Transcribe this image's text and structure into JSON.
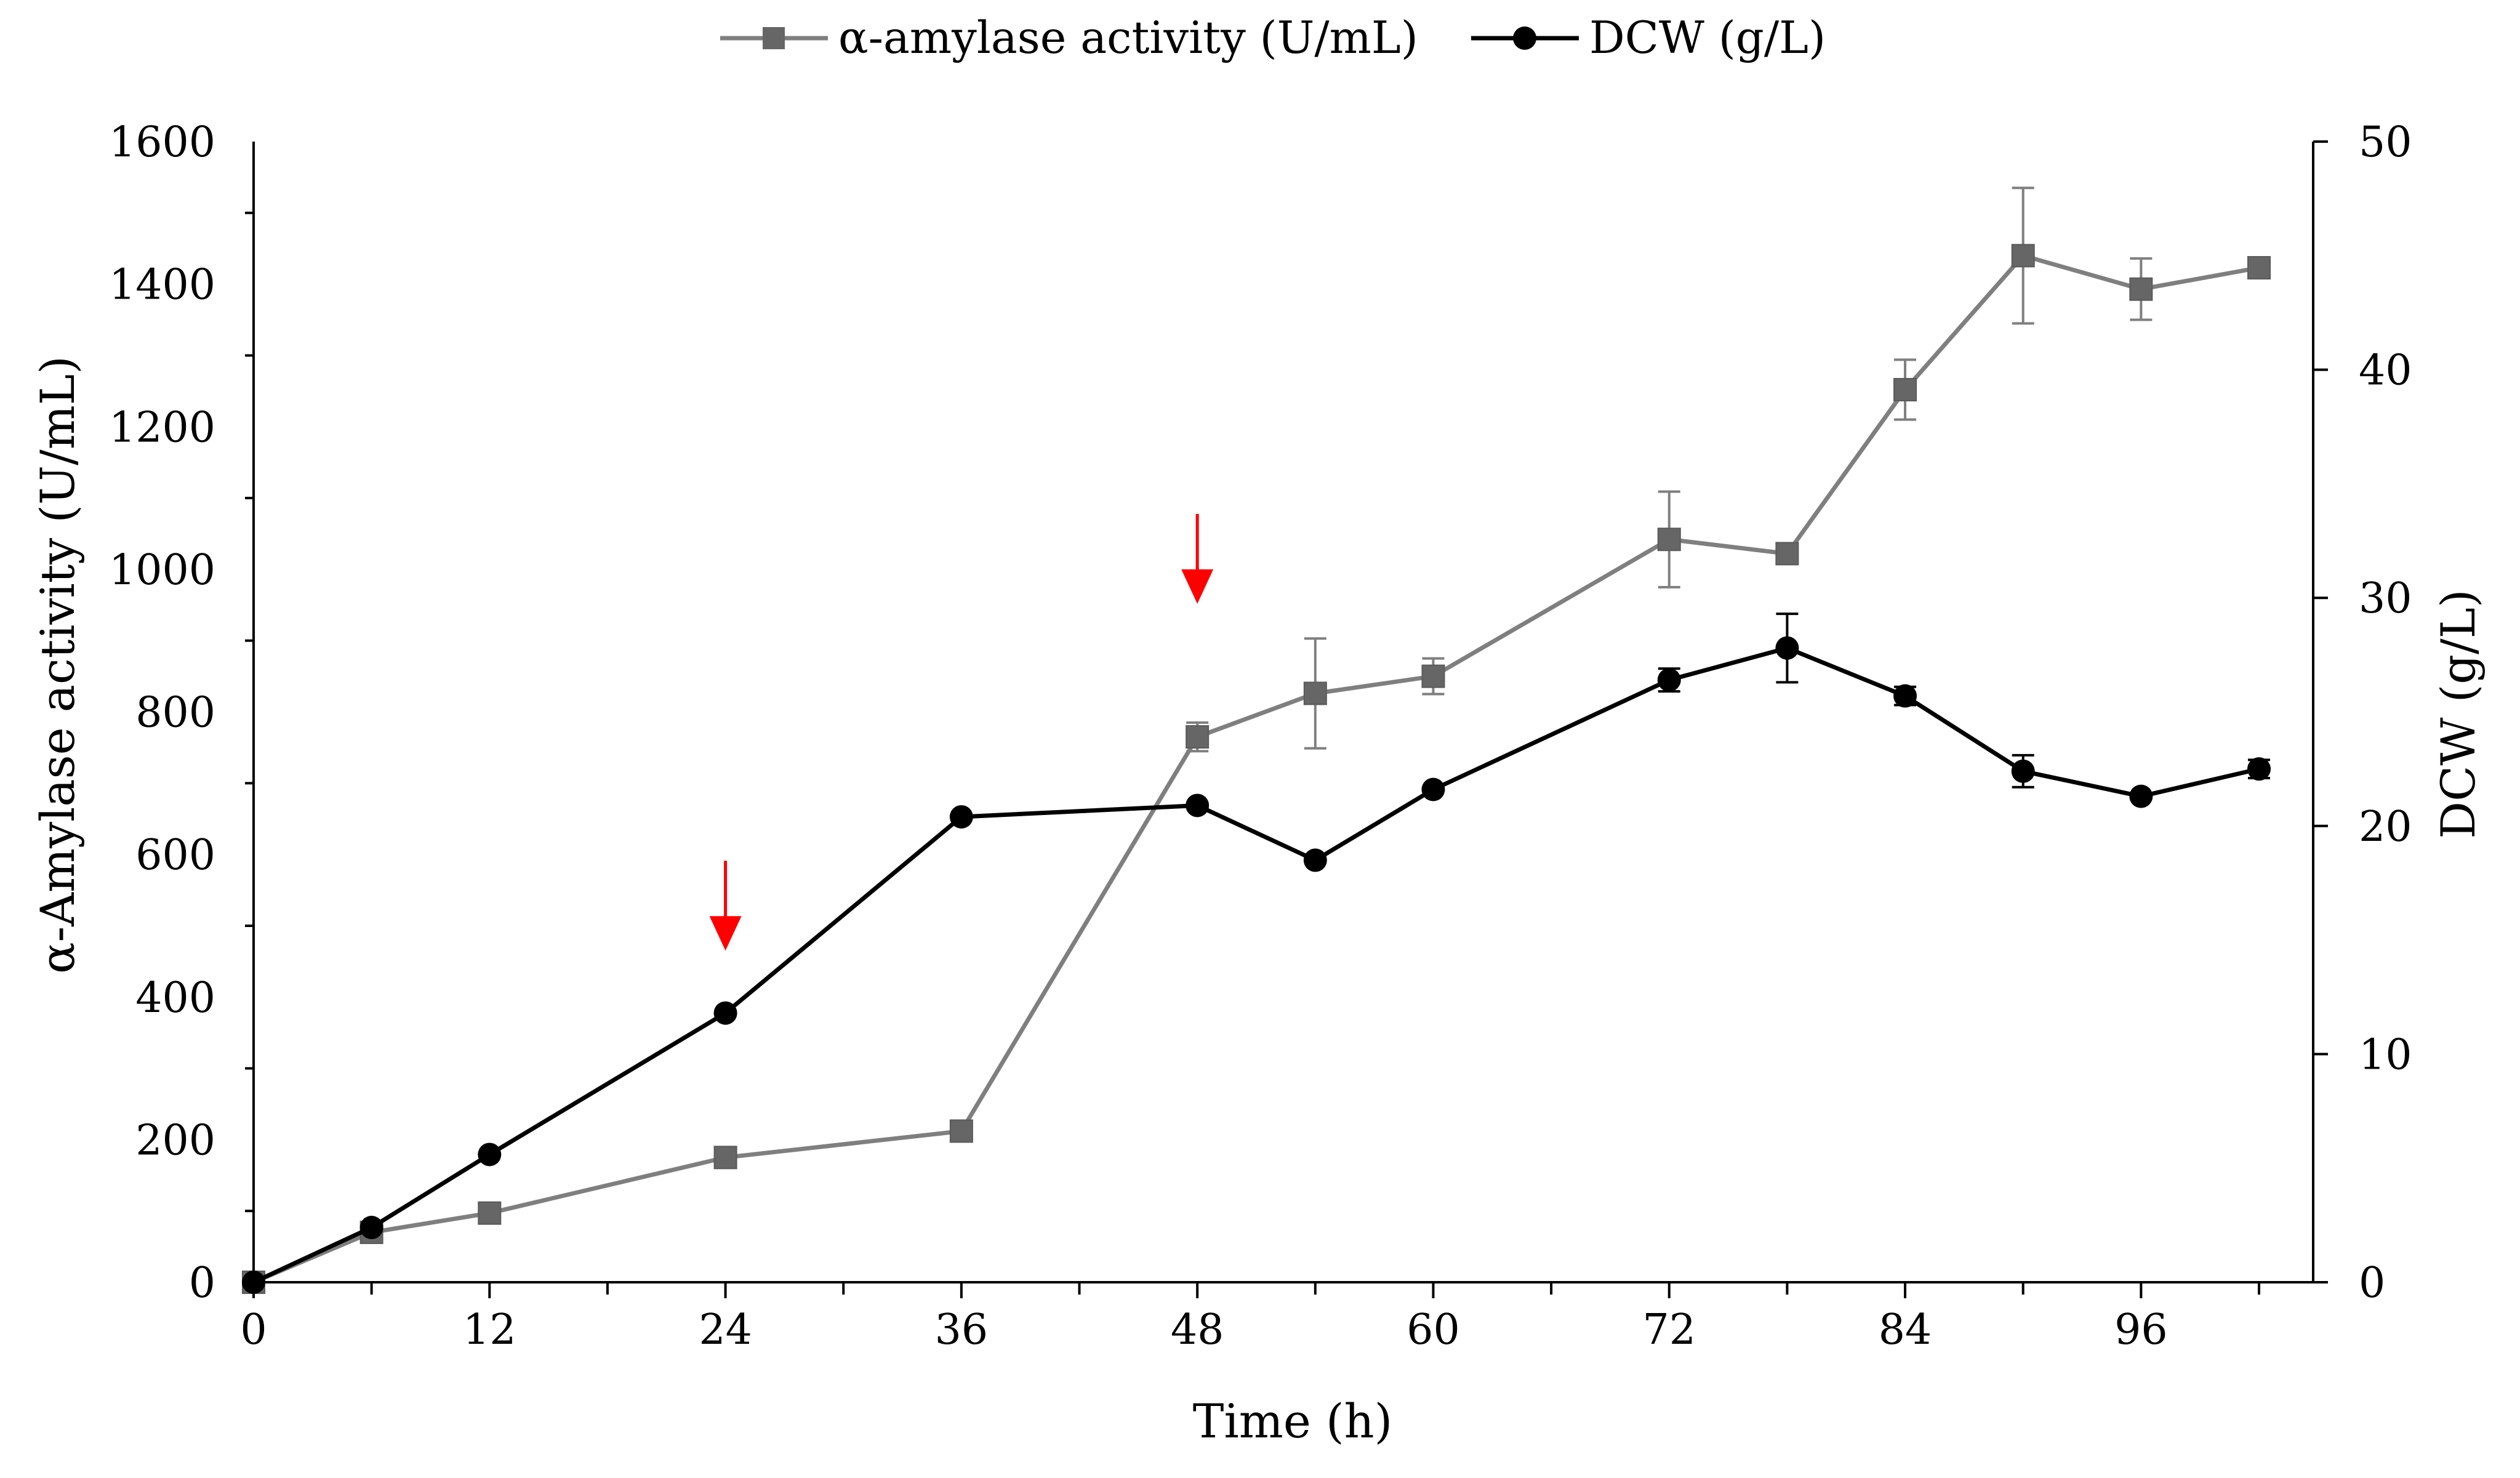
{
  "chart_data": {
    "type": "line",
    "title": "",
    "xlabel": "Time (h)",
    "ylabel_left": "α-Amylase activity (U/mL)",
    "ylabel_right": "DCW (g/L)",
    "xlim": [
      0,
      102
    ],
    "ylim_left": [
      0,
      1600
    ],
    "ylim_right": [
      0,
      50
    ],
    "x_ticks": [
      0,
      12,
      24,
      36,
      48,
      60,
      72,
      84,
      96
    ],
    "x_tick_labels": [
      "0",
      "12",
      "24",
      "36",
      "48",
      "60",
      "72",
      "84",
      "96"
    ],
    "y_left_ticks": [
      0,
      200,
      400,
      600,
      800,
      1000,
      1200,
      1400,
      1600
    ],
    "y_left_tick_labels": [
      "0",
      "200",
      "400",
      "600",
      "800",
      "1000",
      "1200",
      "1400",
      "1600"
    ],
    "y_right_ticks": [
      0,
      10,
      20,
      30,
      40,
      50
    ],
    "y_right_tick_labels": [
      "0",
      "10",
      "20",
      "30",
      "40",
      "50"
    ],
    "grid": false,
    "legend_position": "top-center",
    "series": [
      {
        "name": "α-amylase activity (U/mL)",
        "axis": "left",
        "color": "#7f7f7f",
        "marker": "square",
        "x": [
          0,
          6,
          12,
          24,
          36,
          48,
          54,
          60,
          72,
          78,
          84,
          90,
          96,
          102
        ],
        "values": [
          0,
          70,
          97,
          175,
          212,
          765,
          826,
          850,
          1042,
          1022,
          1252,
          1440,
          1393,
          1423
        ],
        "errors": [
          0,
          0,
          0,
          0,
          0,
          20,
          77,
          25,
          67,
          0,
          42,
          95,
          43,
          0
        ]
      },
      {
        "name": "DCW (g/L)",
        "axis": "right",
        "color": "#000000",
        "marker": "circle",
        "x": [
          0,
          6,
          12,
          24,
          36,
          48,
          54,
          60,
          72,
          78,
          84,
          90,
          96,
          102
        ],
        "values": [
          0,
          2.4,
          5.6,
          11.8,
          20.4,
          20.9,
          18.5,
          21.6,
          26.4,
          27.8,
          25.7,
          22.4,
          21.3,
          22.5
        ],
        "errors": [
          0,
          0,
          0,
          0,
          0,
          0,
          0,
          0,
          0.5,
          1.5,
          0.4,
          0.7,
          0,
          0.4
        ]
      }
    ],
    "annotations": [
      {
        "type": "arrow",
        "color": "#ff0000",
        "x": 24,
        "direction": "down"
      },
      {
        "type": "arrow",
        "color": "#ff0000",
        "x": 48,
        "direction": "down"
      }
    ]
  }
}
